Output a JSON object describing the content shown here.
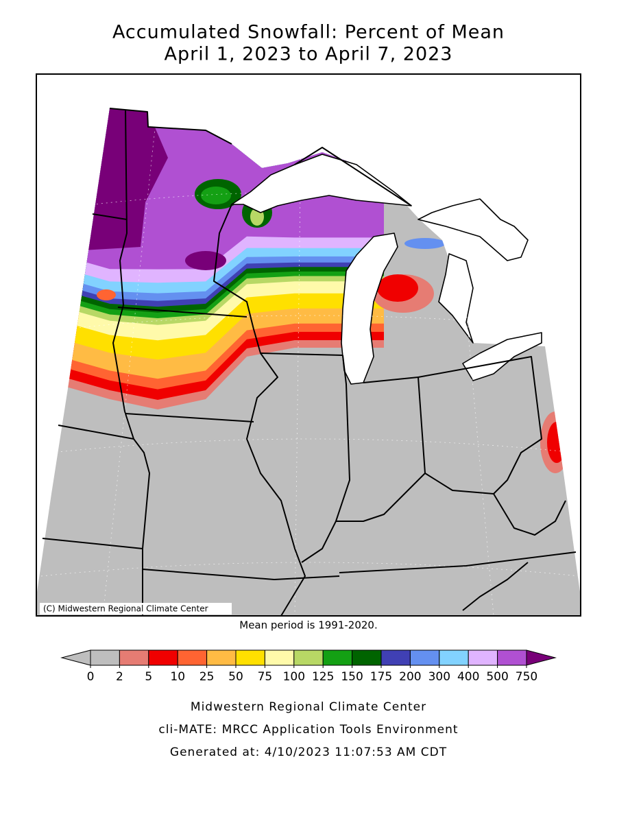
{
  "title": [
    "Accumulated Snowfall: Percent of Mean",
    "April 1, 2023 to April 7, 2023"
  ],
  "copyright": "(C) Midwestern Regional Climate Center",
  "note": "Mean period is 1991-2020.",
  "legend": {
    "ticks": [
      0,
      2,
      5,
      10,
      25,
      50,
      75,
      100,
      125,
      150,
      175,
      200,
      300,
      400,
      500,
      750
    ],
    "under_color": "#bebebe",
    "colors": [
      "#bebebe",
      "#e67c73",
      "#f00000",
      "#ff6432",
      "#ffbb44",
      "#ffe000",
      "#fffaaa",
      "#b8d865",
      "#14a014",
      "#006400",
      "#4040b4",
      "#6490f0",
      "#82d2ff",
      "#e0b4ff",
      "#b050d2"
    ],
    "over_color": "#780078"
  },
  "footer": [
    "Midwestern Regional Climate Center",
    "cli-MATE: MRCC Application Tools Environment",
    "Generated at: 4/10/2023 11:07:53 AM CDT"
  ]
}
